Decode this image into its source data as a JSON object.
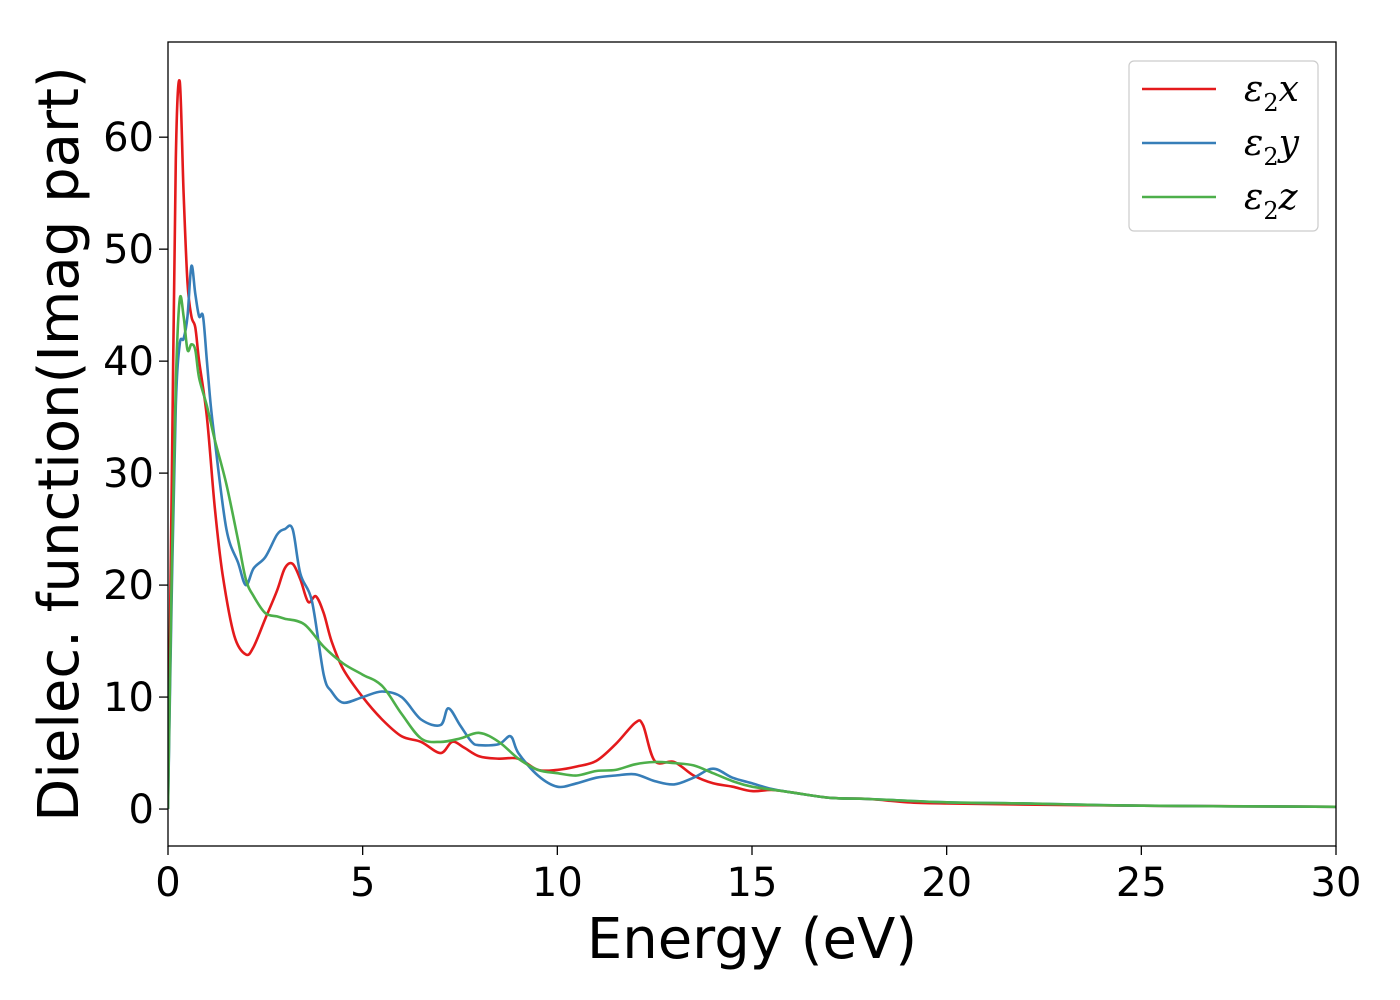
{
  "chart_data": {
    "type": "line",
    "title": "",
    "xlabel": "Energy (eV)",
    "ylabel": "Dielec. function(Imag part)",
    "xlim": [
      0,
      30
    ],
    "ylim": [
      -3.3,
      68.5
    ],
    "xticks": [
      0,
      5,
      10,
      15,
      20,
      25,
      30
    ],
    "yticks": [
      0,
      10,
      20,
      30,
      40,
      50,
      60
    ],
    "grid": false,
    "legend_position": "top-right",
    "series": [
      {
        "name": "ε2x",
        "legend_base": "ε",
        "legend_sub": "2",
        "legend_suffix": "x",
        "color": "#e41a1c",
        "x": [
          0,
          0.1,
          0.2,
          0.3,
          0.4,
          0.5,
          0.6,
          0.7,
          0.8,
          1.0,
          1.2,
          1.4,
          1.7,
          2.0,
          2.2,
          2.5,
          2.8,
          3.0,
          3.2,
          3.4,
          3.6,
          3.8,
          4.0,
          4.2,
          4.5,
          5.0,
          5.5,
          6.0,
          6.5,
          7.0,
          7.3,
          7.6,
          8.0,
          8.5,
          9.0,
          9.5,
          10.0,
          10.5,
          11.0,
          11.5,
          12.0,
          12.2,
          12.5,
          13.0,
          13.5,
          14.0,
          14.5,
          15.0,
          15.5,
          16.0,
          17.0,
          18.0,
          19.0,
          20.0,
          22.0,
          25.0,
          27.0,
          30.0
        ],
        "y": [
          2,
          30,
          58,
          65,
          55,
          47,
          44,
          43,
          40,
          35,
          27,
          21,
          15.5,
          13.8,
          14.5,
          17,
          19.5,
          21.5,
          21.9,
          20.5,
          18.5,
          19,
          17.5,
          15,
          12.5,
          10,
          8,
          6.5,
          6,
          5,
          6,
          5.5,
          4.7,
          4.5,
          4.5,
          3.5,
          3.5,
          3.8,
          4.3,
          5.8,
          7.7,
          7.5,
          4.3,
          4.2,
          3,
          2.3,
          2,
          1.6,
          1.7,
          1.5,
          1,
          0.9,
          0.6,
          0.5,
          0.4,
          0.3,
          0.25,
          0.2
        ]
      },
      {
        "name": "ε2y",
        "legend_base": "ε",
        "legend_sub": "2",
        "legend_suffix": "y",
        "color": "#377eb8",
        "x": [
          0,
          0.1,
          0.2,
          0.3,
          0.4,
          0.5,
          0.6,
          0.7,
          0.8,
          0.9,
          1.0,
          1.1,
          1.2,
          1.5,
          1.8,
          2.0,
          2.2,
          2.5,
          2.8,
          3.0,
          3.2,
          3.4,
          3.7,
          4.0,
          4.2,
          4.5,
          5.0,
          5.5,
          6.0,
          6.5,
          7.0,
          7.2,
          7.5,
          7.8,
          8.0,
          8.5,
          8.8,
          9.0,
          9.5,
          10.0,
          10.5,
          11.0,
          11.5,
          12.0,
          12.5,
          13.0,
          13.5,
          14.0,
          14.5,
          15.0,
          15.5,
          16.0,
          17.0,
          18.0,
          20.0,
          22.0,
          25.0,
          30.0
        ],
        "y": [
          0,
          20,
          36,
          41.5,
          42,
          44,
          48.5,
          46,
          44,
          44,
          40,
          36,
          33,
          25,
          22,
          20,
          21.5,
          22.5,
          24.5,
          25,
          25,
          21,
          18.5,
          12,
          10.5,
          9.5,
          10,
          10.5,
          10,
          8,
          7.5,
          9,
          7.5,
          6,
          5.7,
          5.8,
          6.5,
          5,
          3,
          2,
          2.3,
          2.8,
          3.0,
          3.1,
          2.5,
          2.2,
          2.8,
          3.6,
          2.8,
          2.3,
          1.8,
          1.5,
          1.0,
          0.9,
          0.6,
          0.5,
          0.3,
          0.2
        ]
      },
      {
        "name": "ε2z",
        "legend_base": "ε",
        "legend_sub": "2",
        "legend_suffix": "z",
        "color": "#4daf4a",
        "x": [
          0,
          0.1,
          0.2,
          0.3,
          0.4,
          0.5,
          0.6,
          0.7,
          0.8,
          1.0,
          1.2,
          1.5,
          1.8,
          2.0,
          2.2,
          2.5,
          2.8,
          3.0,
          3.5,
          4.0,
          4.5,
          5.0,
          5.5,
          6.0,
          6.5,
          7.0,
          7.5,
          8.0,
          8.5,
          9.0,
          9.5,
          10.0,
          10.5,
          11.0,
          11.5,
          12.0,
          12.5,
          13.0,
          13.5,
          14.0,
          14.5,
          15.0,
          16.0,
          17.0,
          18.0,
          20.0,
          22.0,
          25.0,
          30.0
        ],
        "y": [
          0,
          22,
          38,
          45.5,
          44,
          41,
          41.5,
          41,
          38.5,
          36,
          33,
          29,
          24,
          20.5,
          19,
          17.5,
          17.2,
          17,
          16.5,
          14.5,
          13,
          12,
          11,
          8.5,
          6.3,
          6.0,
          6.3,
          6.8,
          6.0,
          4.5,
          3.5,
          3.2,
          3.0,
          3.4,
          3.5,
          4.0,
          4.2,
          4.1,
          3.9,
          3.2,
          2.5,
          2.0,
          1.5,
          1.0,
          0.9,
          0.6,
          0.5,
          0.3,
          0.2
        ]
      }
    ]
  }
}
